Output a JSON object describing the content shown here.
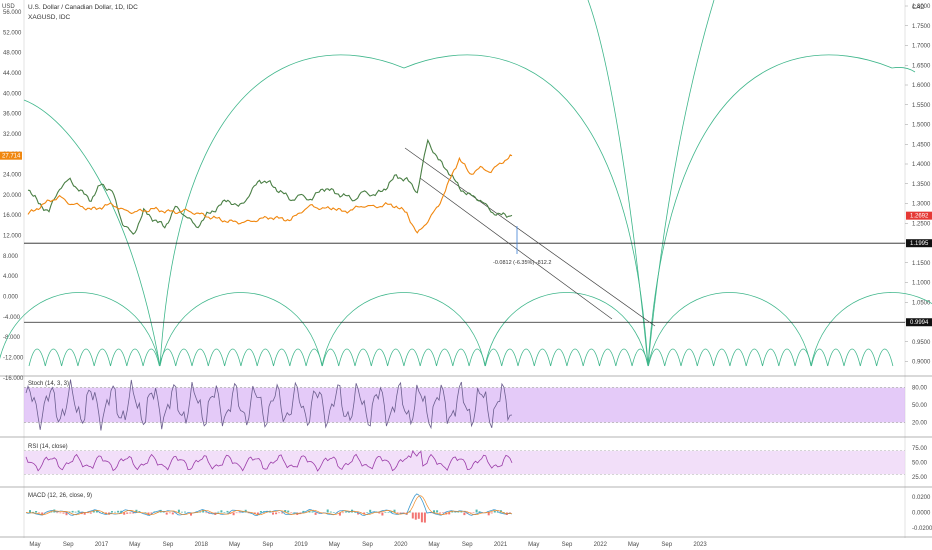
{
  "header": {
    "title": "U.S. Dollar / Canadian Dollar, 1D, IDC",
    "subtitle": "XAGUSD, IDC",
    "left_unit": "USD",
    "right_unit": "CAD"
  },
  "colors": {
    "usdcad": "#4a7f45",
    "usdcad_down": "#c0392b",
    "xagusd": "#f0870f",
    "arcs": "#3fb68b",
    "stoch_band": "#d9b3f5",
    "stoch_line": "#6b5e8e",
    "rsi_band": "#ecd2f7",
    "rsi_line": "#9b3ca8",
    "macd_line": "#3d9ad1",
    "signal_line": "#f28c28"
  },
  "chart_data": {
    "type": "line",
    "x_axis": {
      "labels": [
        "May",
        "Sep",
        "2017",
        "May",
        "Sep",
        "2018",
        "May",
        "Sep",
        "2019",
        "May",
        "Sep",
        "2020",
        "May",
        "Sep",
        "2021",
        "May",
        "Sep",
        "2022",
        "May",
        "Sep",
        "2023"
      ]
    },
    "left_axis": {
      "unit": "USD",
      "ticks": [
        "56.000",
        "52.000",
        "48.000",
        "44.000",
        "40.000",
        "36.000",
        "32.000",
        "28.000",
        "24.000",
        "20.000",
        "16.000",
        "12.000",
        "8.000",
        "4.000",
        "0.000",
        "-4.000",
        "-8.000",
        "-12.000",
        "-16.000"
      ],
      "current_label": "27.714"
    },
    "right_axis": {
      "unit": "CAD",
      "ticks": [
        "1.8000",
        "1.7500",
        "1.7000",
        "1.6500",
        "1.6000",
        "1.5500",
        "1.5000",
        "1.4500",
        "1.4000",
        "1.3500",
        "1.3000",
        "1.2500",
        "1.2000",
        "1.1500",
        "1.1000",
        "1.0500",
        "1.0000",
        "0.9500",
        "0.9000"
      ],
      "current_label": "1.2692",
      "levels": [
        "1.1995",
        "0.9994"
      ]
    },
    "series": [
      {
        "name": "U.S. Dollar / Canadian Dollar",
        "values": [
          1.34,
          1.3,
          1.28,
          1.34,
          1.36,
          1.33,
          1.31,
          1.35,
          1.33,
          1.25,
          1.22,
          1.28,
          1.26,
          1.24,
          1.29,
          1.27,
          1.24,
          1.27,
          1.29,
          1.31,
          1.29,
          1.32,
          1.36,
          1.35,
          1.33,
          1.31,
          1.32,
          1.31,
          1.34,
          1.33,
          1.32,
          1.31,
          1.33,
          1.32,
          1.34,
          1.37,
          1.36,
          1.33,
          1.46,
          1.41,
          1.38,
          1.34,
          1.32,
          1.31,
          1.28,
          1.27,
          1.27
        ]
      },
      {
        "name": "XAGUSD",
        "values": [
          16.2,
          17.5,
          18.8,
          19.6,
          18.3,
          17.8,
          17.1,
          17.6,
          18.2,
          17.0,
          16.6,
          16.9,
          17.2,
          16.8,
          16.6,
          16.9,
          16.4,
          15.8,
          15.3,
          14.8,
          14.6,
          14.7,
          15.2,
          15.6,
          15.3,
          15.1,
          16.8,
          17.9,
          17.2,
          17.5,
          16.6,
          17.3,
          17.9,
          17.6,
          18.1,
          17.8,
          16.4,
          12.3,
          14.9,
          17.8,
          22.5,
          27.2,
          24.1,
          25.3,
          24.6,
          26.4,
          27.7
        ]
      }
    ],
    "measurement": "-0.0812 (-6.35%) -812.2",
    "indicators": {
      "stoch": {
        "label": "Stoch (14, 3, 3)",
        "ticks": [
          "80.00",
          "50.00",
          "20.00"
        ]
      },
      "rsi": {
        "label": "RSI (14, close)",
        "ticks": [
          "75.00",
          "50.00",
          "25.00"
        ]
      },
      "macd": {
        "label": "MACD (12, 26, close, 9)",
        "ticks": [
          "0.0200",
          "0.0000",
          "-0.0200"
        ]
      }
    }
  }
}
